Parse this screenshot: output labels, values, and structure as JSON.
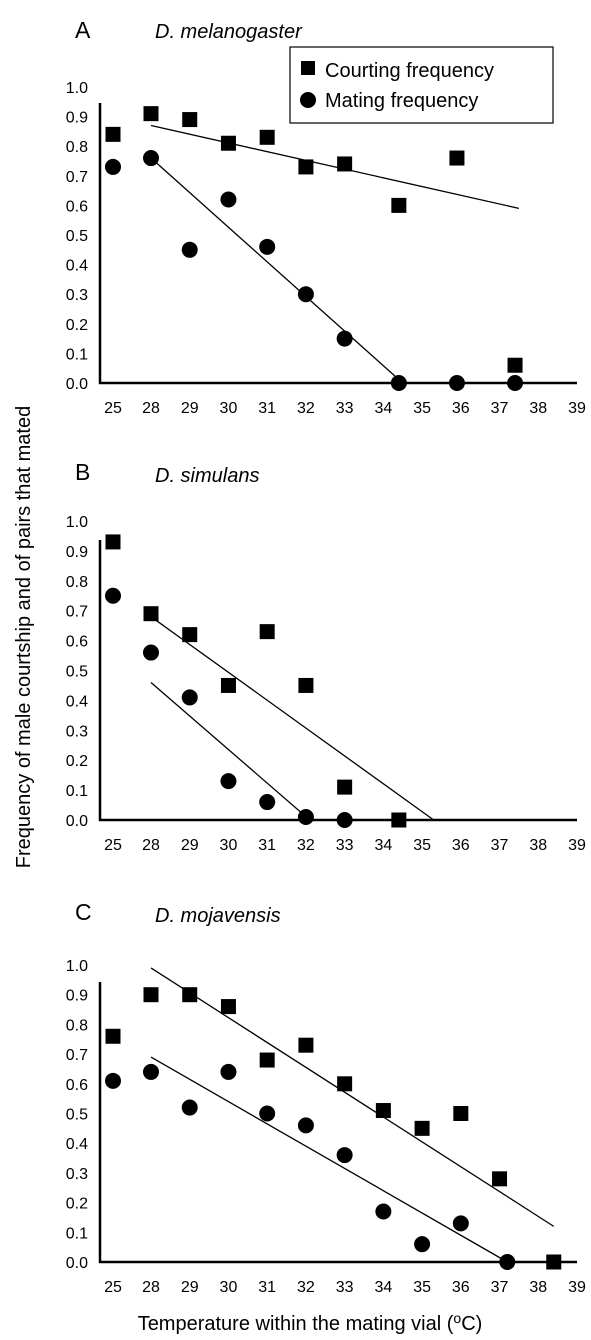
{
  "figure": {
    "ylabel": "Frequency of male courtship and of pairs that mated",
    "xlabel_main": "Temperature within the mating vial  (",
    "xlabel_sup": "o",
    "xlabel_end": "C)"
  },
  "legend": {
    "courting_label": "Courting frequency",
    "mating_label": "Mating frequency"
  },
  "chart_data": [
    {
      "type": "scatter",
      "panel": "A",
      "title": "D. melanogaster",
      "x_tick_labels": [
        "25",
        "28",
        "29",
        "30",
        "31",
        "32",
        "33",
        "34",
        "35",
        "36",
        "37",
        "38",
        "39"
      ],
      "y_ticks": [
        "0.0",
        "0.1",
        "0.2",
        "0.3",
        "0.4",
        "0.5",
        "0.6",
        "0.7",
        "0.8",
        "0.9",
        "1.0"
      ],
      "ylim": [
        0,
        1.0
      ],
      "legend_position": "top-right",
      "series": [
        {
          "name": "Courting frequency",
          "marker": "square",
          "points": [
            [
              25,
              0.84
            ],
            [
              28,
              0.91
            ],
            [
              29,
              0.89
            ],
            [
              30,
              0.81
            ],
            [
              31,
              0.83
            ],
            [
              32,
              0.73
            ],
            [
              33,
              0.74
            ],
            [
              34.4,
              0.6
            ],
            [
              35.9,
              0.76
            ],
            [
              37.4,
              0.06
            ]
          ],
          "fit": [
            [
              28,
              0.87
            ],
            [
              37.5,
              0.59
            ]
          ]
        },
        {
          "name": "Mating frequency",
          "marker": "circle",
          "points": [
            [
              25,
              0.73
            ],
            [
              28,
              0.76
            ],
            [
              29,
              0.45
            ],
            [
              30,
              0.62
            ],
            [
              31,
              0.46
            ],
            [
              32,
              0.3
            ],
            [
              33,
              0.15
            ],
            [
              34.4,
              0.0
            ],
            [
              35.9,
              0.0
            ],
            [
              37.4,
              0.0
            ]
          ],
          "fit": [
            [
              28,
              0.76
            ],
            [
              34.5,
              0.0
            ]
          ]
        }
      ]
    },
    {
      "type": "scatter",
      "panel": "B",
      "title": "D. simulans",
      "x_tick_labels": [
        "25",
        "28",
        "29",
        "30",
        "31",
        "32",
        "33",
        "34",
        "35",
        "36",
        "37",
        "38",
        "39"
      ],
      "y_ticks": [
        "0.0",
        "0.1",
        "0.2",
        "0.3",
        "0.4",
        "0.5",
        "0.6",
        "0.7",
        "0.8",
        "0.9",
        "1.0"
      ],
      "ylim": [
        0,
        1.0
      ],
      "series": [
        {
          "name": "Courting frequency",
          "marker": "square",
          "points": [
            [
              25,
              0.93
            ],
            [
              28,
              0.69
            ],
            [
              29,
              0.62
            ],
            [
              30,
              0.45
            ],
            [
              31,
              0.63
            ],
            [
              32,
              0.45
            ],
            [
              33,
              0.11
            ],
            [
              34.4,
              0.0
            ]
          ],
          "fit": [
            [
              28,
              0.68
            ],
            [
              35.3,
              0.0
            ]
          ]
        },
        {
          "name": "Mating frequency",
          "marker": "circle",
          "points": [
            [
              25,
              0.75
            ],
            [
              28,
              0.56
            ],
            [
              29,
              0.41
            ],
            [
              30,
              0.13
            ],
            [
              31,
              0.06
            ],
            [
              32,
              0.01
            ],
            [
              33,
              0.0
            ]
          ],
          "fit": [
            [
              28,
              0.46
            ],
            [
              32.1,
              0.0
            ]
          ]
        }
      ]
    },
    {
      "type": "scatter",
      "panel": "C",
      "title": "D. mojavensis",
      "x_tick_labels": [
        "25",
        "28",
        "29",
        "30",
        "31",
        "32",
        "33",
        "34",
        "35",
        "36",
        "37",
        "38",
        "39"
      ],
      "y_ticks": [
        "0.0",
        "0.1",
        "0.2",
        "0.3",
        "0.4",
        "0.5",
        "0.6",
        "0.7",
        "0.8",
        "0.9",
        "1.0"
      ],
      "ylim": [
        0,
        1.0
      ],
      "series": [
        {
          "name": "Courting frequency",
          "marker": "square",
          "points": [
            [
              25,
              0.76
            ],
            [
              28,
              0.9
            ],
            [
              29,
              0.9
            ],
            [
              30,
              0.86
            ],
            [
              31,
              0.68
            ],
            [
              32,
              0.73
            ],
            [
              33,
              0.6
            ],
            [
              34,
              0.51
            ],
            [
              35,
              0.45
            ],
            [
              36,
              0.5
            ],
            [
              37,
              0.28
            ],
            [
              38.4,
              0.0
            ]
          ],
          "fit": [
            [
              28,
              0.99
            ],
            [
              38.4,
              0.12
            ]
          ]
        },
        {
          "name": "Mating frequency",
          "marker": "circle",
          "points": [
            [
              25,
              0.61
            ],
            [
              28,
              0.64
            ],
            [
              29,
              0.52
            ],
            [
              30,
              0.64
            ],
            [
              31,
              0.5
            ],
            [
              32,
              0.46
            ],
            [
              33,
              0.36
            ],
            [
              34,
              0.17
            ],
            [
              35,
              0.06
            ],
            [
              36,
              0.13
            ],
            [
              37.2,
              0.0
            ]
          ],
          "fit": [
            [
              28,
              0.69
            ],
            [
              37.2,
              0.0
            ]
          ]
        }
      ]
    }
  ]
}
